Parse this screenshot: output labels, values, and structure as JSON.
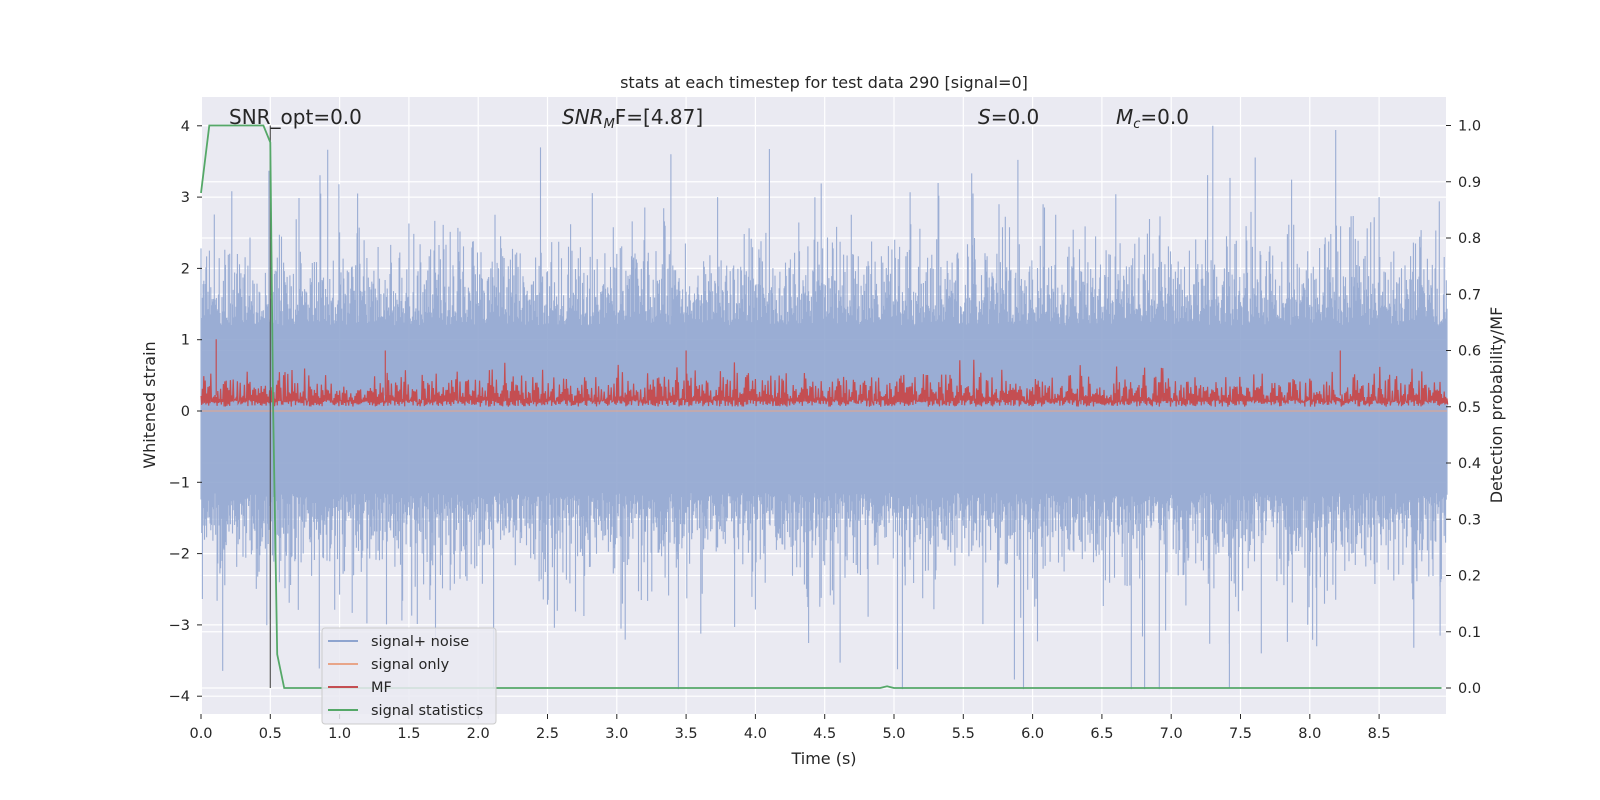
{
  "chart_data": {
    "type": "line",
    "title": "stats at each timestep for test data 290 [signal=0]",
    "xlabel": "Time (s)",
    "ylabel": "Whitened strain",
    "y2label": "Detection probability/MF",
    "xlim": [
      0.0,
      8.99
    ],
    "ylim": [
      -4.25,
      4.4
    ],
    "y2lim": [
      -0.05,
      1.04
    ],
    "x_ticks": [
      "0.0",
      "0.5",
      "1.0",
      "1.5",
      "2.0",
      "2.5",
      "3.0",
      "3.5",
      "4.0",
      "4.5",
      "5.0",
      "5.5",
      "6.0",
      "6.5",
      "7.0",
      "7.5",
      "8.0",
      "8.5"
    ],
    "y_ticks": [
      "−4",
      "−3",
      "−2",
      "−1",
      "0",
      "1",
      "2",
      "3",
      "4"
    ],
    "y2_ticks": [
      "0.0",
      "0.1",
      "0.2",
      "0.3",
      "0.4",
      "0.5",
      "0.6",
      "0.7",
      "0.8",
      "0.9",
      "1.0"
    ],
    "grid": true,
    "legend_position": "lower-left",
    "annotations": {
      "snr_opt": "SNR_opt=0.0",
      "snr_mf_sym": "SNR",
      "snr_mf_sub": "M",
      "snr_mf_tail": "F=[4.87]",
      "s_sym": "S",
      "s_val": "=0.0",
      "mc_sym": "M",
      "mc_sub": "c",
      "mc_val": "=0.0"
    },
    "marker_line_x": 0.5,
    "series": [
      {
        "name": "signal+ noise",
        "color": "#8ea4cf",
        "axis": "left",
        "description_values": "whitened noise, roughly between -3.9 and 4.0 with spikes",
        "max": 4.0,
        "min": -3.9
      },
      {
        "name": "signal only",
        "color": "#e8a589",
        "axis": "left",
        "values_note": "zero throughout"
      },
      {
        "name": "MF",
        "color": "#c44e52",
        "axis": "right",
        "typical_range": [
          0.5,
          0.58
        ],
        "spikes": [
          {
            "x": 0.11,
            "y": 0.62
          },
          {
            "x": 1.33,
            "y": 0.6
          },
          {
            "x": 3.5,
            "y": 0.6
          },
          {
            "x": 8.22,
            "y": 0.6
          }
        ]
      },
      {
        "name": "signal statistics",
        "color": "#55a868",
        "axis": "right",
        "x": [
          0.0,
          0.06,
          0.1,
          0.2,
          0.3,
          0.4,
          0.45,
          0.5,
          0.52,
          0.55,
          0.6,
          1.0,
          2.0,
          3.0,
          4.0,
          4.9,
          4.95,
          5.0,
          6.0,
          7.0,
          8.0,
          8.95
        ],
        "values": [
          0.88,
          1.0,
          1.0,
          1.0,
          1.0,
          1.0,
          1.0,
          0.97,
          0.5,
          0.06,
          0.0,
          0.0,
          0.0,
          0.0,
          0.0,
          0.0,
          0.003,
          0.0,
          0.0,
          0.0,
          0.0,
          0.0
        ]
      }
    ]
  }
}
